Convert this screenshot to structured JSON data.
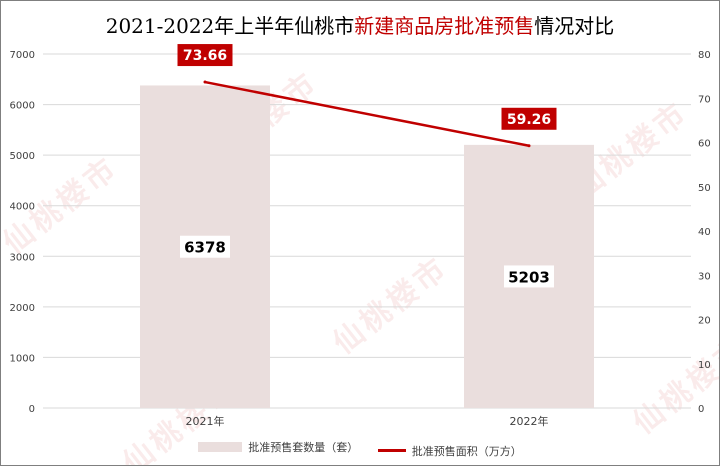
{
  "title": {
    "prefix": "2021-2022年上半年仙桃市",
    "highlight": "新建商品房批准预售",
    "suffix": "情况对比"
  },
  "watermark": "仙桃楼市",
  "legend": {
    "bar_label": "批准预售套数量（套）",
    "line_label": "批准预售面积（万方）"
  },
  "colors": {
    "bar": "#eadedd",
    "line": "#c00000",
    "label_box": "#c00000",
    "grid": "#d9d9d9",
    "axis_text": "#404040"
  },
  "chart_data": {
    "type": "bar",
    "categories": [
      "2021年",
      "2022年"
    ],
    "series": [
      {
        "name": "批准预售套数量（套）",
        "type": "bar",
        "axis": "left",
        "values": [
          6378,
          5203
        ]
      },
      {
        "name": "批准预售面积（万方）",
        "type": "line",
        "axis": "right",
        "values": [
          73.66,
          59.26
        ]
      }
    ],
    "ylim": [
      0,
      7000
    ],
    "y_ticks": [
      0,
      1000,
      2000,
      3000,
      4000,
      5000,
      6000,
      7000
    ],
    "y2lim": [
      0,
      80
    ],
    "y2_ticks": [
      0,
      10,
      20,
      30,
      40,
      50,
      60,
      70,
      80
    ],
    "grid": true,
    "legend_position": "bottom"
  }
}
